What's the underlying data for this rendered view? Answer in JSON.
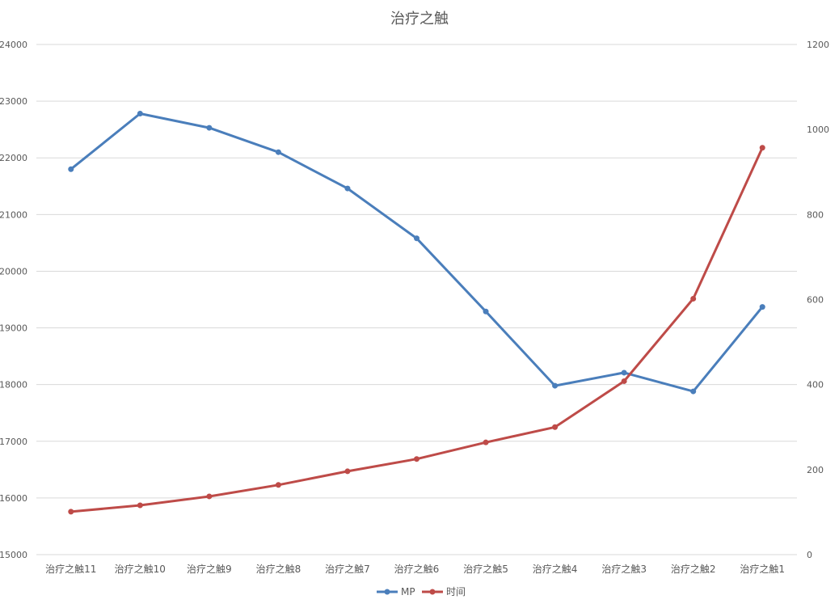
{
  "chart_data": {
    "type": "line",
    "title": "治疗之触",
    "categories": [
      "治疗之触11",
      "治疗之触10",
      "治疗之触9",
      "治疗之触8",
      "治疗之触7",
      "治疗之触6",
      "治疗之触5",
      "治疗之触4",
      "治疗之触3",
      "治疗之触2",
      "治疗之触1"
    ],
    "series": [
      {
        "name": "MP",
        "axis": "left",
        "color": "#4a7ebb",
        "values": [
          21800,
          22780,
          22530,
          22100,
          21460,
          20580,
          19290,
          17980,
          18210,
          17880,
          19370
        ]
      },
      {
        "name": "时间",
        "axis": "right",
        "color": "#be4b48",
        "values": [
          101,
          116,
          137,
          164,
          196,
          225,
          264,
          300,
          408,
          602,
          957
        ]
      }
    ],
    "y_left": {
      "min": 15000,
      "max": 24000,
      "step": 1000,
      "ticks": [
        "15000",
        "16000",
        "17000",
        "18000",
        "19000",
        "20000",
        "21000",
        "22000",
        "23000",
        "24000"
      ]
    },
    "y_right": {
      "min": 0,
      "max": 1200,
      "step": 200,
      "ticks": [
        "0",
        "200",
        "400",
        "600",
        "800",
        "1000",
        "1200"
      ]
    },
    "grid": true,
    "legend": "bottom"
  }
}
